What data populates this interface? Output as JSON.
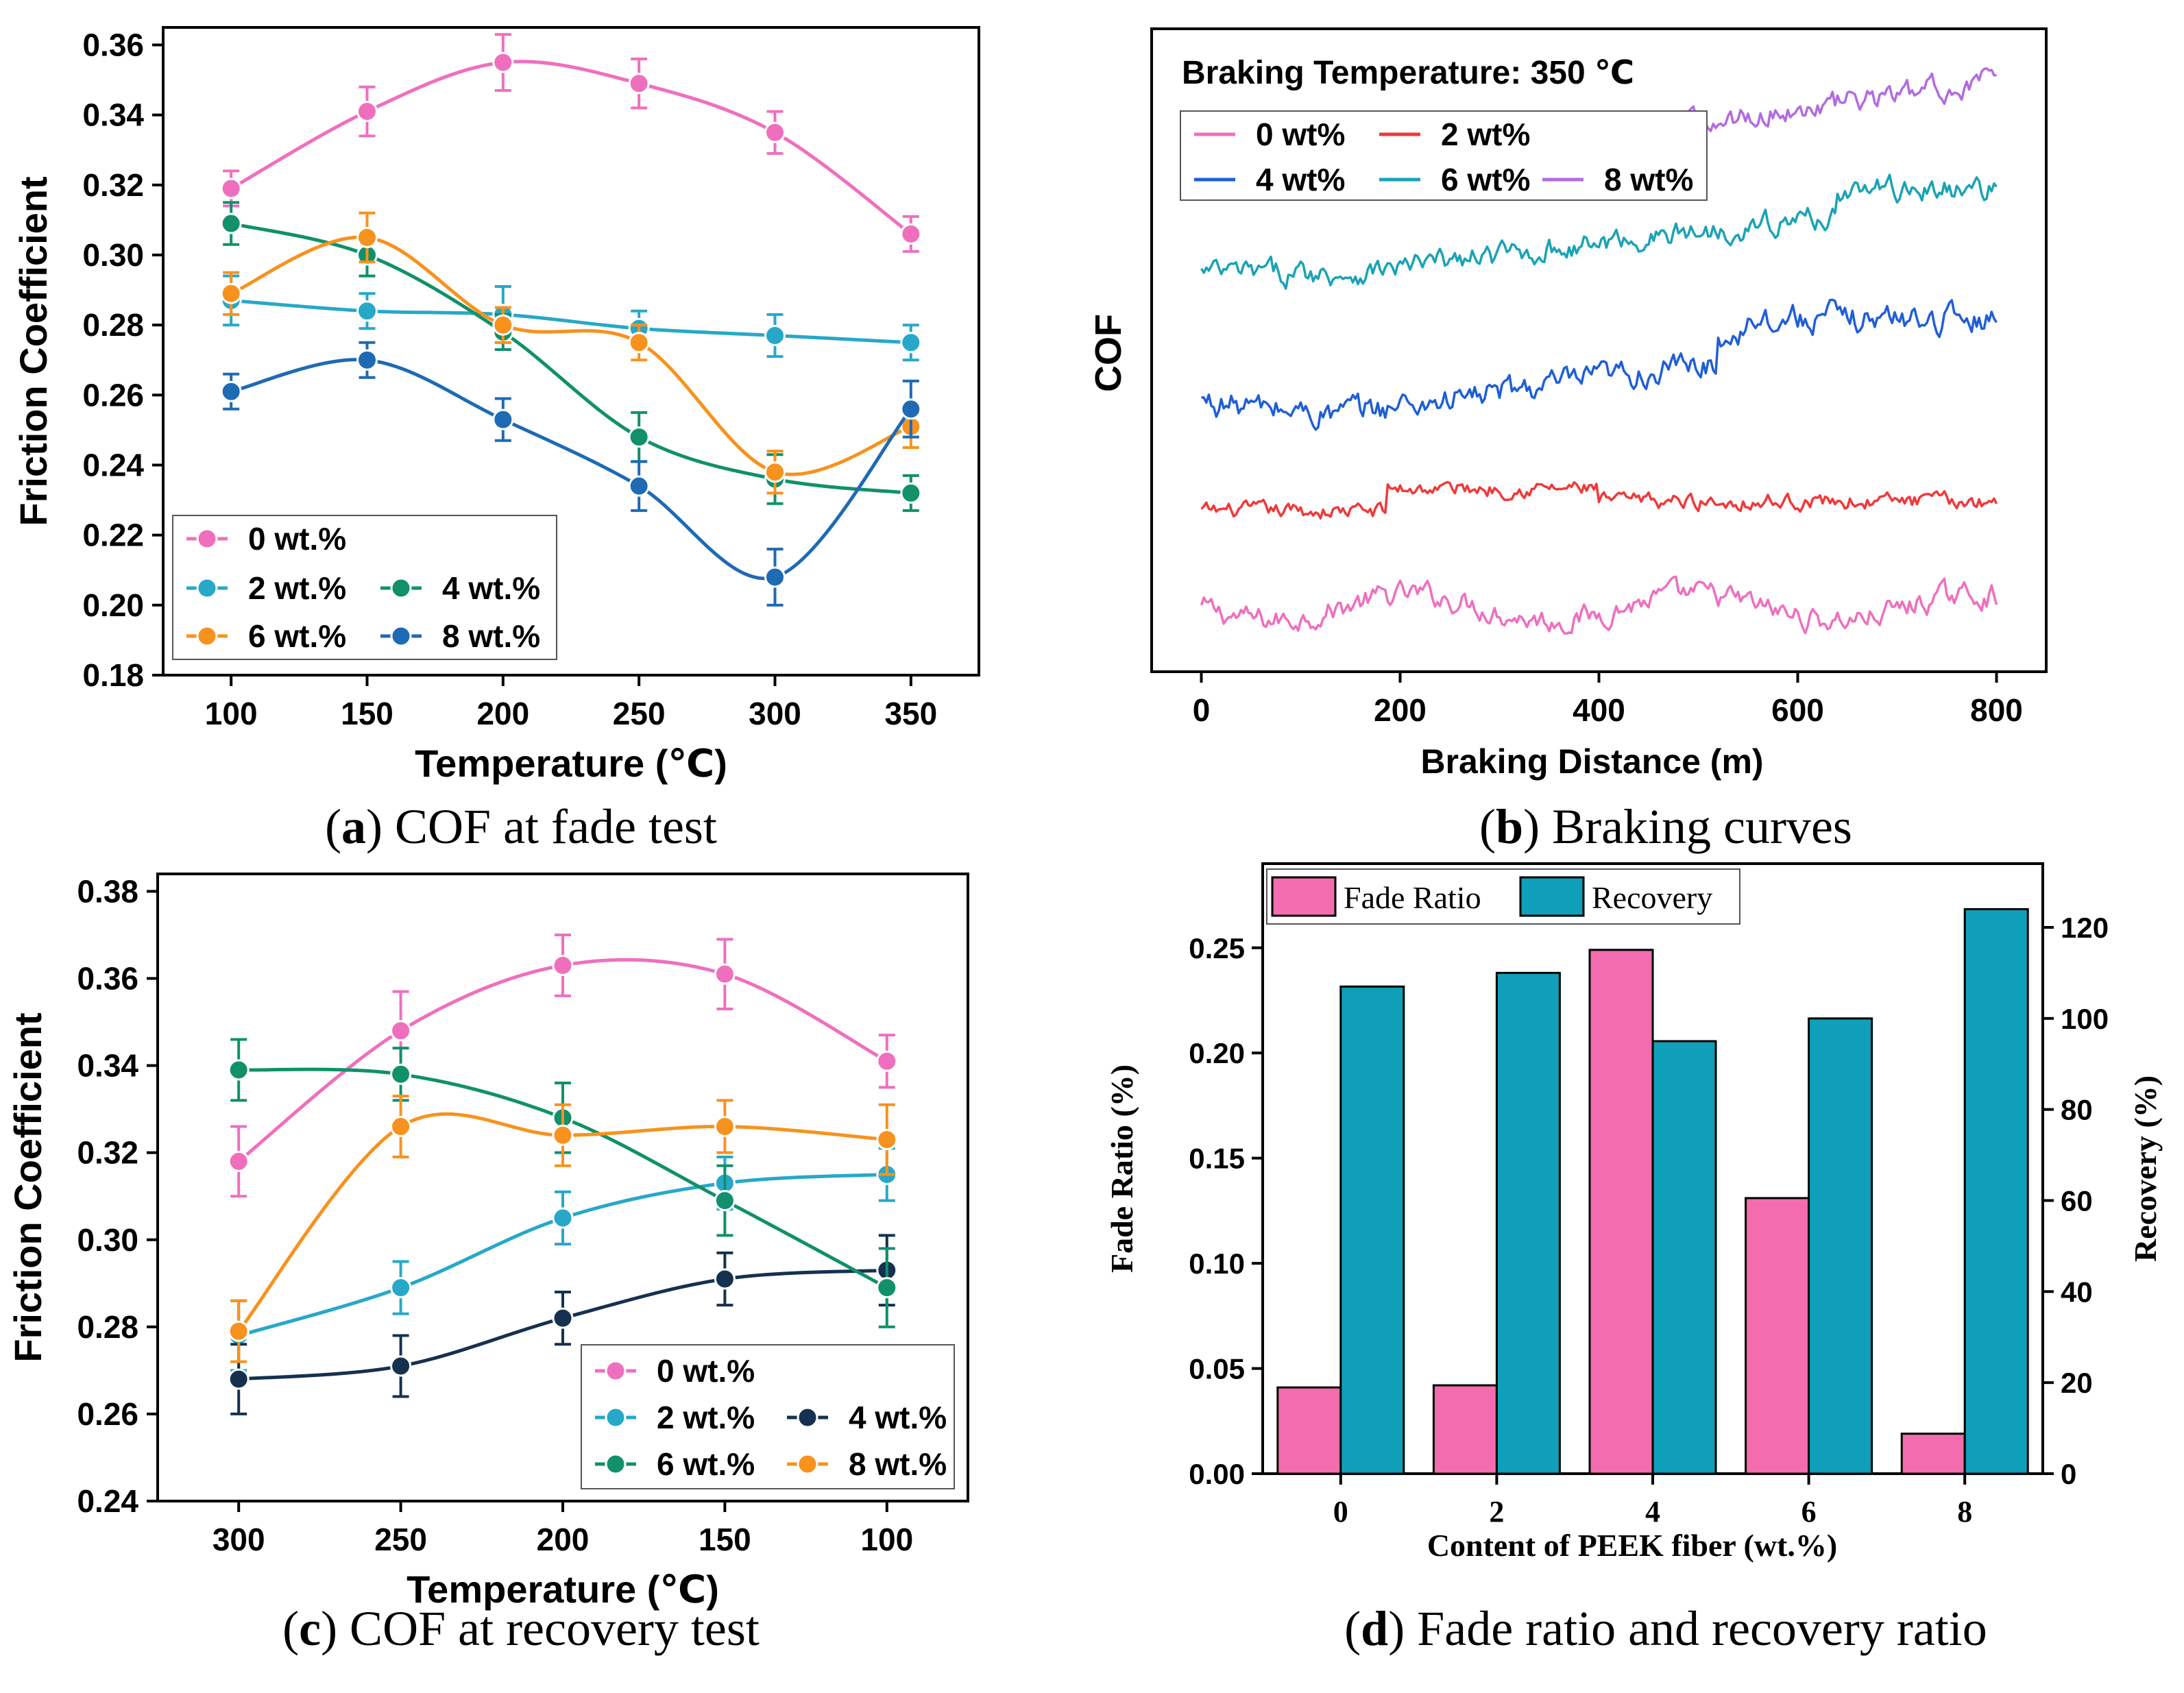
{
  "chart_data": [
    {
      "panel": "a",
      "type": "line",
      "caption_letter": "a",
      "caption_text": " COF at fade test",
      "xlabel": "Temperature (℃)",
      "ylabel": "Friction Coefficient",
      "x": [
        100,
        150,
        200,
        250,
        300,
        350
      ],
      "xticks": [
        "100",
        "150",
        "200",
        "250",
        "300",
        "350"
      ],
      "xlim": [
        75,
        375
      ],
      "ylim": [
        0.18,
        0.365
      ],
      "yticks": [
        "0.18",
        "0.20",
        "0.22",
        "0.24",
        "0.26",
        "0.28",
        "0.30",
        "0.32",
        "0.34",
        "0.36"
      ],
      "series": [
        {
          "name": "0 wt.%",
          "color": "#ef6fbe",
          "values": [
            0.319,
            0.341,
            0.355,
            0.349,
            0.335,
            0.306
          ],
          "errors": [
            0.005,
            0.007,
            0.008,
            0.007,
            0.006,
            0.005
          ]
        },
        {
          "name": "2 wt.%",
          "color": "#27a8c8",
          "values": [
            0.287,
            0.284,
            0.283,
            0.279,
            0.277,
            0.275
          ],
          "errors": [
            0.007,
            0.005,
            0.008,
            0.005,
            0.006,
            0.005
          ]
        },
        {
          "name": "4 wt.%",
          "color": "#11906a",
          "values": [
            0.309,
            0.3,
            0.278,
            0.248,
            0.236,
            0.232
          ],
          "errors": [
            0.006,
            0.006,
            0.005,
            0.007,
            0.007,
            0.005
          ]
        },
        {
          "name": "6 wt.%",
          "color": "#f7921e",
          "values": [
            0.289,
            0.305,
            0.28,
            0.275,
            0.238,
            0.251
          ],
          "errors": [
            0.006,
            0.007,
            0.005,
            0.005,
            0.006,
            0.006
          ]
        },
        {
          "name": "8 wt.%",
          "color": "#1e6ab4",
          "values": [
            0.261,
            0.27,
            0.253,
            0.234,
            0.208,
            0.256
          ],
          "errors": [
            0.005,
            0.005,
            0.006,
            0.007,
            0.008,
            0.008
          ]
        }
      ],
      "legend_position": "bottom-left"
    },
    {
      "panel": "b",
      "type": "line",
      "caption_letter": "b",
      "caption_text": " Braking curves",
      "title": "Braking Temperature: 350 ℃",
      "xlabel": "Braking Distance (m)",
      "ylabel": "COF",
      "xticks": [
        "0",
        "200",
        "400",
        "600",
        "800"
      ],
      "xlim": [
        -50,
        850
      ],
      "y_axis_ticks_shown": false,
      "series": [
        {
          "name": "0 wt%",
          "color": "#ef6fbe",
          "level": 0.1,
          "amp": 0.06
        },
        {
          "name": "2 wt%",
          "color": "#f0393a",
          "level": 0.25,
          "amp": 0.04
        },
        {
          "name": "4 wt%",
          "color": "#1f5fd6",
          "level": 0.42,
          "amp": 0.07
        },
        {
          "name": "6 wt%",
          "color": "#1aa3b5",
          "level": 0.62,
          "amp": 0.06
        },
        {
          "name": "8 wt%",
          "color": "#b26be0",
          "level": 0.8,
          "amp": 0.06
        }
      ],
      "legend_position": "top-left"
    },
    {
      "panel": "c",
      "type": "line",
      "caption_letter": "c",
      "caption_text": " COF at recovery test",
      "xlabel": "Temperature (℃)",
      "ylabel": "Friction Coefficient",
      "x": [
        300,
        250,
        200,
        150,
        100
      ],
      "xticks": [
        "300",
        "250",
        "200",
        "150",
        "100"
      ],
      "xlim": [
        325,
        75
      ],
      "ylim": [
        0.24,
        0.384
      ],
      "yticks": [
        "0.24",
        "0.26",
        "0.28",
        "0.30",
        "0.32",
        "0.34",
        "0.36",
        "0.38"
      ],
      "series": [
        {
          "name": "0 wt.%",
          "color": "#ef6fbe",
          "values": [
            0.318,
            0.348,
            0.363,
            0.361,
            0.341
          ],
          "errors": [
            0.008,
            0.009,
            0.007,
            0.008,
            0.006
          ]
        },
        {
          "name": "2 wt.%",
          "color": "#27a8c8",
          "values": [
            0.278,
            0.289,
            0.305,
            0.313,
            0.315
          ],
          "errors": [
            0.008,
            0.006,
            0.006,
            0.006,
            0.006
          ]
        },
        {
          "name": "4 wt.%",
          "color": "#15314f",
          "values": [
            0.268,
            0.271,
            0.282,
            0.291,
            0.293
          ],
          "errors": [
            0.008,
            0.007,
            0.006,
            0.006,
            0.008
          ]
        },
        {
          "name": "6 wt.%",
          "color": "#11906a",
          "values": [
            0.339,
            0.338,
            0.328,
            0.309,
            0.289
          ],
          "errors": [
            0.007,
            0.006,
            0.008,
            0.008,
            0.009
          ]
        },
        {
          "name": "8 wt.%",
          "color": "#f7921e",
          "values": [
            0.279,
            0.326,
            0.324,
            0.326,
            0.323
          ],
          "errors": [
            0.007,
            0.007,
            0.007,
            0.006,
            0.008
          ]
        }
      ],
      "legend_position": "bottom-right"
    },
    {
      "panel": "d",
      "type": "bar",
      "caption_letter": "d",
      "caption_text": " Fade ratio and recovery ratio",
      "xlabel": "Content of PEEK fiber (wt.%)",
      "ylabel": "Fade Ratio (%)",
      "ylabel_right": "Recovery (%)",
      "categories": [
        "0",
        "2",
        "4",
        "6",
        "8"
      ],
      "ylim": [
        0,
        0.29
      ],
      "yticks": [
        "0.00",
        "0.05",
        "0.10",
        "0.15",
        "0.20",
        "0.25"
      ],
      "ylim_right": [
        0,
        134
      ],
      "yticks_right": [
        "0",
        "20",
        "40",
        "60",
        "80",
        "100",
        "120"
      ],
      "series": [
        {
          "name": "Fade Ratio",
          "color": "#f26cae",
          "axis": "left",
          "values": [
            0.041,
            0.042,
            0.249,
            0.131,
            0.019
          ]
        },
        {
          "name": "Recovery",
          "color": "#0f9fb8",
          "axis": "right",
          "values": [
            107,
            110,
            95,
            100,
            124
          ]
        }
      ],
      "legend_position": "top-left"
    }
  ]
}
